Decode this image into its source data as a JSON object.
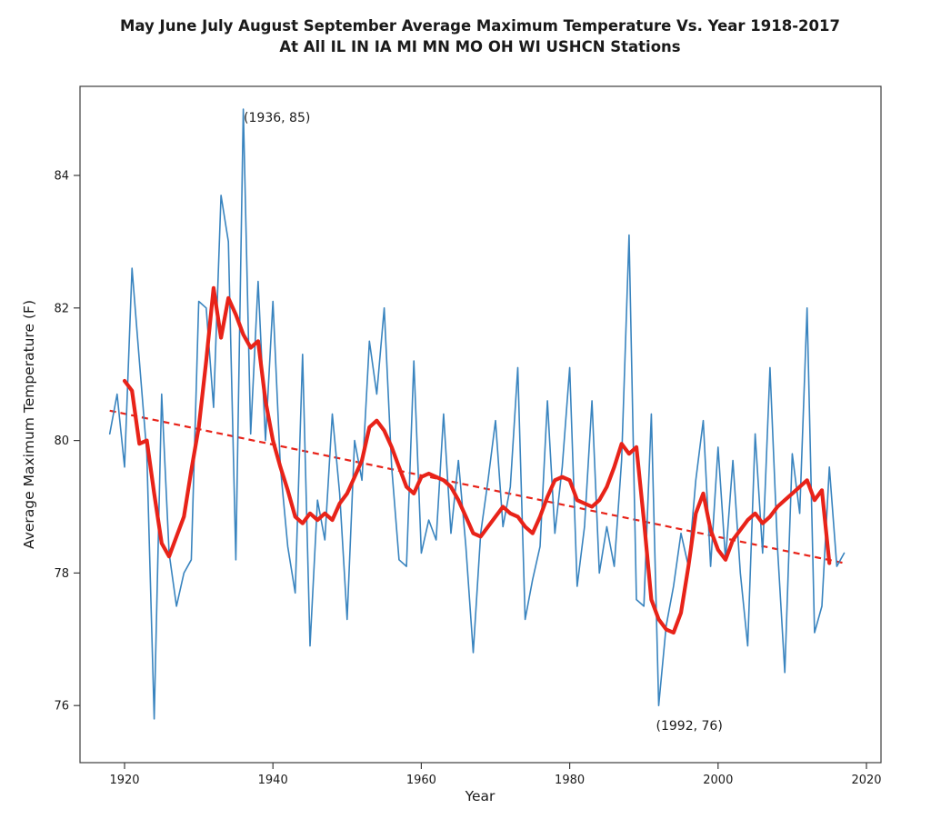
{
  "header": {
    "title_line1": "May June July August September Average Maximum Temperature Vs. Year 1918-2017",
    "title_line2": "At All IL IN IA MI MN MO OH WI USHCN Stations"
  },
  "chart_data": {
    "type": "line",
    "title": "May June July August September Average Maximum Temperature Vs. Year 1918-2017 At All IL IN IA MI MN MO OH WI USHCN Stations",
    "xlabel": "Year",
    "ylabel": "Average Maximum Temperature (F)",
    "xlim": [
      1914,
      2022
    ],
    "ylim": [
      75.1,
      85.35
    ],
    "grid": false,
    "legend": "none",
    "x_ticks": [
      1920,
      1940,
      1960,
      1980,
      2000,
      2020
    ],
    "y_ticks": [
      76,
      78,
      80,
      82,
      84
    ],
    "annotations": [
      {
        "text": "(1936, 85)",
        "year": 1936,
        "value": 85
      },
      {
        "text": "(1992, 76)",
        "year": 1992,
        "value": 76
      }
    ],
    "series": [
      {
        "name": "annual-max-temperature",
        "color": "#3984bf",
        "width": 1.6,
        "start_year": 1918,
        "values": [
          80.1,
          80.7,
          79.6,
          82.6,
          81.2,
          79.8,
          75.8,
          80.7,
          78.3,
          77.5,
          78.0,
          78.2,
          82.1,
          82.0,
          80.5,
          83.7,
          83.0,
          78.2,
          85.0,
          80.1,
          82.4,
          80.0,
          82.1,
          79.6,
          78.4,
          77.7,
          81.3,
          76.9,
          79.1,
          78.5,
          80.4,
          79.2,
          77.3,
          80.0,
          79.4,
          81.5,
          80.7,
          82.0,
          79.6,
          78.2,
          78.1,
          81.2,
          78.3,
          78.8,
          78.5,
          80.4,
          78.6,
          79.7,
          78.4,
          76.8,
          78.6,
          79.4,
          80.3,
          78.7,
          79.3,
          81.1,
          77.3,
          77.9,
          78.4,
          80.6,
          78.6,
          79.6,
          81.1,
          77.8,
          78.7,
          80.6,
          78.0,
          78.7,
          78.1,
          79.7,
          83.1,
          77.6,
          77.5,
          80.4,
          76.0,
          77.2,
          77.8,
          78.6,
          78.1,
          79.4,
          80.3,
          78.1,
          79.9,
          78.2,
          79.7,
          78.0,
          76.9,
          80.1,
          78.3,
          81.1,
          78.4,
          76.5,
          79.8,
          78.9,
          82.0,
          77.1,
          77.5,
          79.6,
          78.1,
          78.3
        ]
      },
      {
        "name": "5-year-smoothed",
        "color": "#e82319",
        "width": 4.2,
        "start_year": 1920,
        "values": [
          80.9,
          80.75,
          79.95,
          80.0,
          79.2,
          78.45,
          78.25,
          78.55,
          78.85,
          79.55,
          80.2,
          81.2,
          82.3,
          81.55,
          82.15,
          81.9,
          81.6,
          81.4,
          81.5,
          80.6,
          80.0,
          79.6,
          79.25,
          78.85,
          78.75,
          78.9,
          78.8,
          78.9,
          78.8,
          79.05,
          79.2,
          79.45,
          79.7,
          80.2,
          80.3,
          80.15,
          79.9,
          79.6,
          79.3,
          79.2,
          79.45,
          79.5,
          79.45,
          79.4,
          79.3,
          79.1,
          78.85,
          78.6,
          78.55,
          78.7,
          78.85,
          79.0,
          78.9,
          78.85,
          78.7,
          78.6,
          78.85,
          79.15,
          79.4,
          79.45,
          79.4,
          79.1,
          79.05,
          79.0,
          79.1,
          79.3,
          79.6,
          79.95,
          79.8,
          79.9,
          78.8,
          77.6,
          77.3,
          77.15,
          77.1,
          77.4,
          78.1,
          78.9,
          79.2,
          78.65,
          78.35,
          78.2,
          78.5,
          78.65,
          78.8,
          78.9,
          78.75,
          78.85,
          79.0,
          79.1,
          79.2,
          79.3,
          79.4,
          79.1,
          79.25,
          78.15
        ]
      }
    ],
    "trend": {
      "name": "linear-trend",
      "color": "#e82319",
      "width": 2.2,
      "dash": "7,5",
      "points": [
        [
          1918,
          80.45
        ],
        [
          2017,
          78.15
        ]
      ]
    }
  }
}
